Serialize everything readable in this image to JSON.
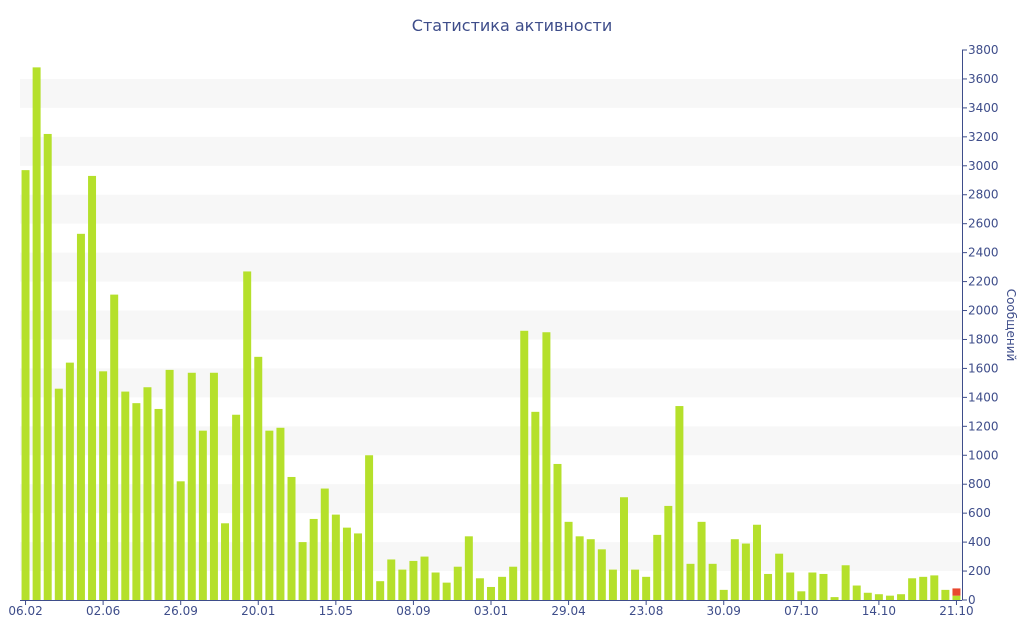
{
  "chart_data": {
    "type": "bar",
    "title": "Статистика активности",
    "ylabel": "Сообщений",
    "xlabel": "",
    "ylim": [
      0,
      3800
    ],
    "yticks": [
      0,
      200,
      400,
      600,
      800,
      1000,
      1200,
      1400,
      1600,
      1800,
      2000,
      2200,
      2400,
      2600,
      2800,
      3000,
      3200,
      3400,
      3600,
      3800
    ],
    "y_axis_position": "right",
    "grid": "alternating horizontal bands",
    "x_tick_labels": [
      {
        "label": "06.02",
        "index": 0
      },
      {
        "label": "02.06",
        "index": 7
      },
      {
        "label": "26.09",
        "index": 14
      },
      {
        "label": "20.01",
        "index": 21
      },
      {
        "label": "15.05",
        "index": 28
      },
      {
        "label": "08.09",
        "index": 35
      },
      {
        "label": "03.01",
        "index": 42
      },
      {
        "label": "29.04",
        "index": 49
      },
      {
        "label": "23.08",
        "index": 56
      },
      {
        "label": "30.09",
        "index": 63
      },
      {
        "label": "07.10",
        "index": 70
      },
      {
        "label": "14.10",
        "index": 77
      },
      {
        "label": "21.10",
        "index": 84
      }
    ],
    "series": [
      {
        "color": "#b5e02b",
        "values": [
          2970,
          3680,
          3220,
          1460,
          1640,
          2530,
          2930,
          1580,
          2110,
          1440,
          1360,
          1470,
          1320,
          1590,
          820,
          1570,
          1170,
          1570,
          530,
          1280,
          2270,
          1680,
          1170,
          1190,
          850,
          400,
          560,
          770,
          590,
          500,
          460,
          1000,
          130,
          280,
          210,
          270,
          300,
          190,
          120,
          230,
          440,
          150,
          90,
          160,
          230,
          1860,
          1300,
          1850,
          940,
          540,
          440,
          420,
          350,
          210,
          710,
          210,
          160,
          450,
          650,
          1340,
          250,
          540,
          250,
          70,
          420,
          390,
          520,
          180,
          320,
          190,
          60,
          190,
          180,
          20,
          240,
          100,
          50,
          40,
          30,
          40,
          150,
          160,
          170,
          70,
          30
        ]
      },
      {
        "color": "#e8482f",
        "values": [
          0,
          0,
          0,
          0,
          0,
          0,
          0,
          0,
          0,
          0,
          0,
          0,
          0,
          0,
          0,
          0,
          0,
          0,
          0,
          0,
          0,
          0,
          0,
          0,
          0,
          0,
          0,
          0,
          0,
          0,
          0,
          0,
          0,
          0,
          0,
          0,
          0,
          0,
          0,
          0,
          0,
          0,
          0,
          0,
          0,
          0,
          0,
          0,
          0,
          0,
          0,
          0,
          0,
          0,
          0,
          0,
          0,
          0,
          0,
          0,
          0,
          0,
          0,
          0,
          0,
          0,
          0,
          0,
          0,
          0,
          0,
          0,
          0,
          0,
          0,
          0,
          0,
          0,
          0,
          0,
          0,
          0,
          0,
          0,
          50
        ]
      }
    ],
    "colors": {
      "text": "#3e4d8a",
      "band": "#f7f7f7",
      "axis": "#3e4d8a"
    }
  }
}
